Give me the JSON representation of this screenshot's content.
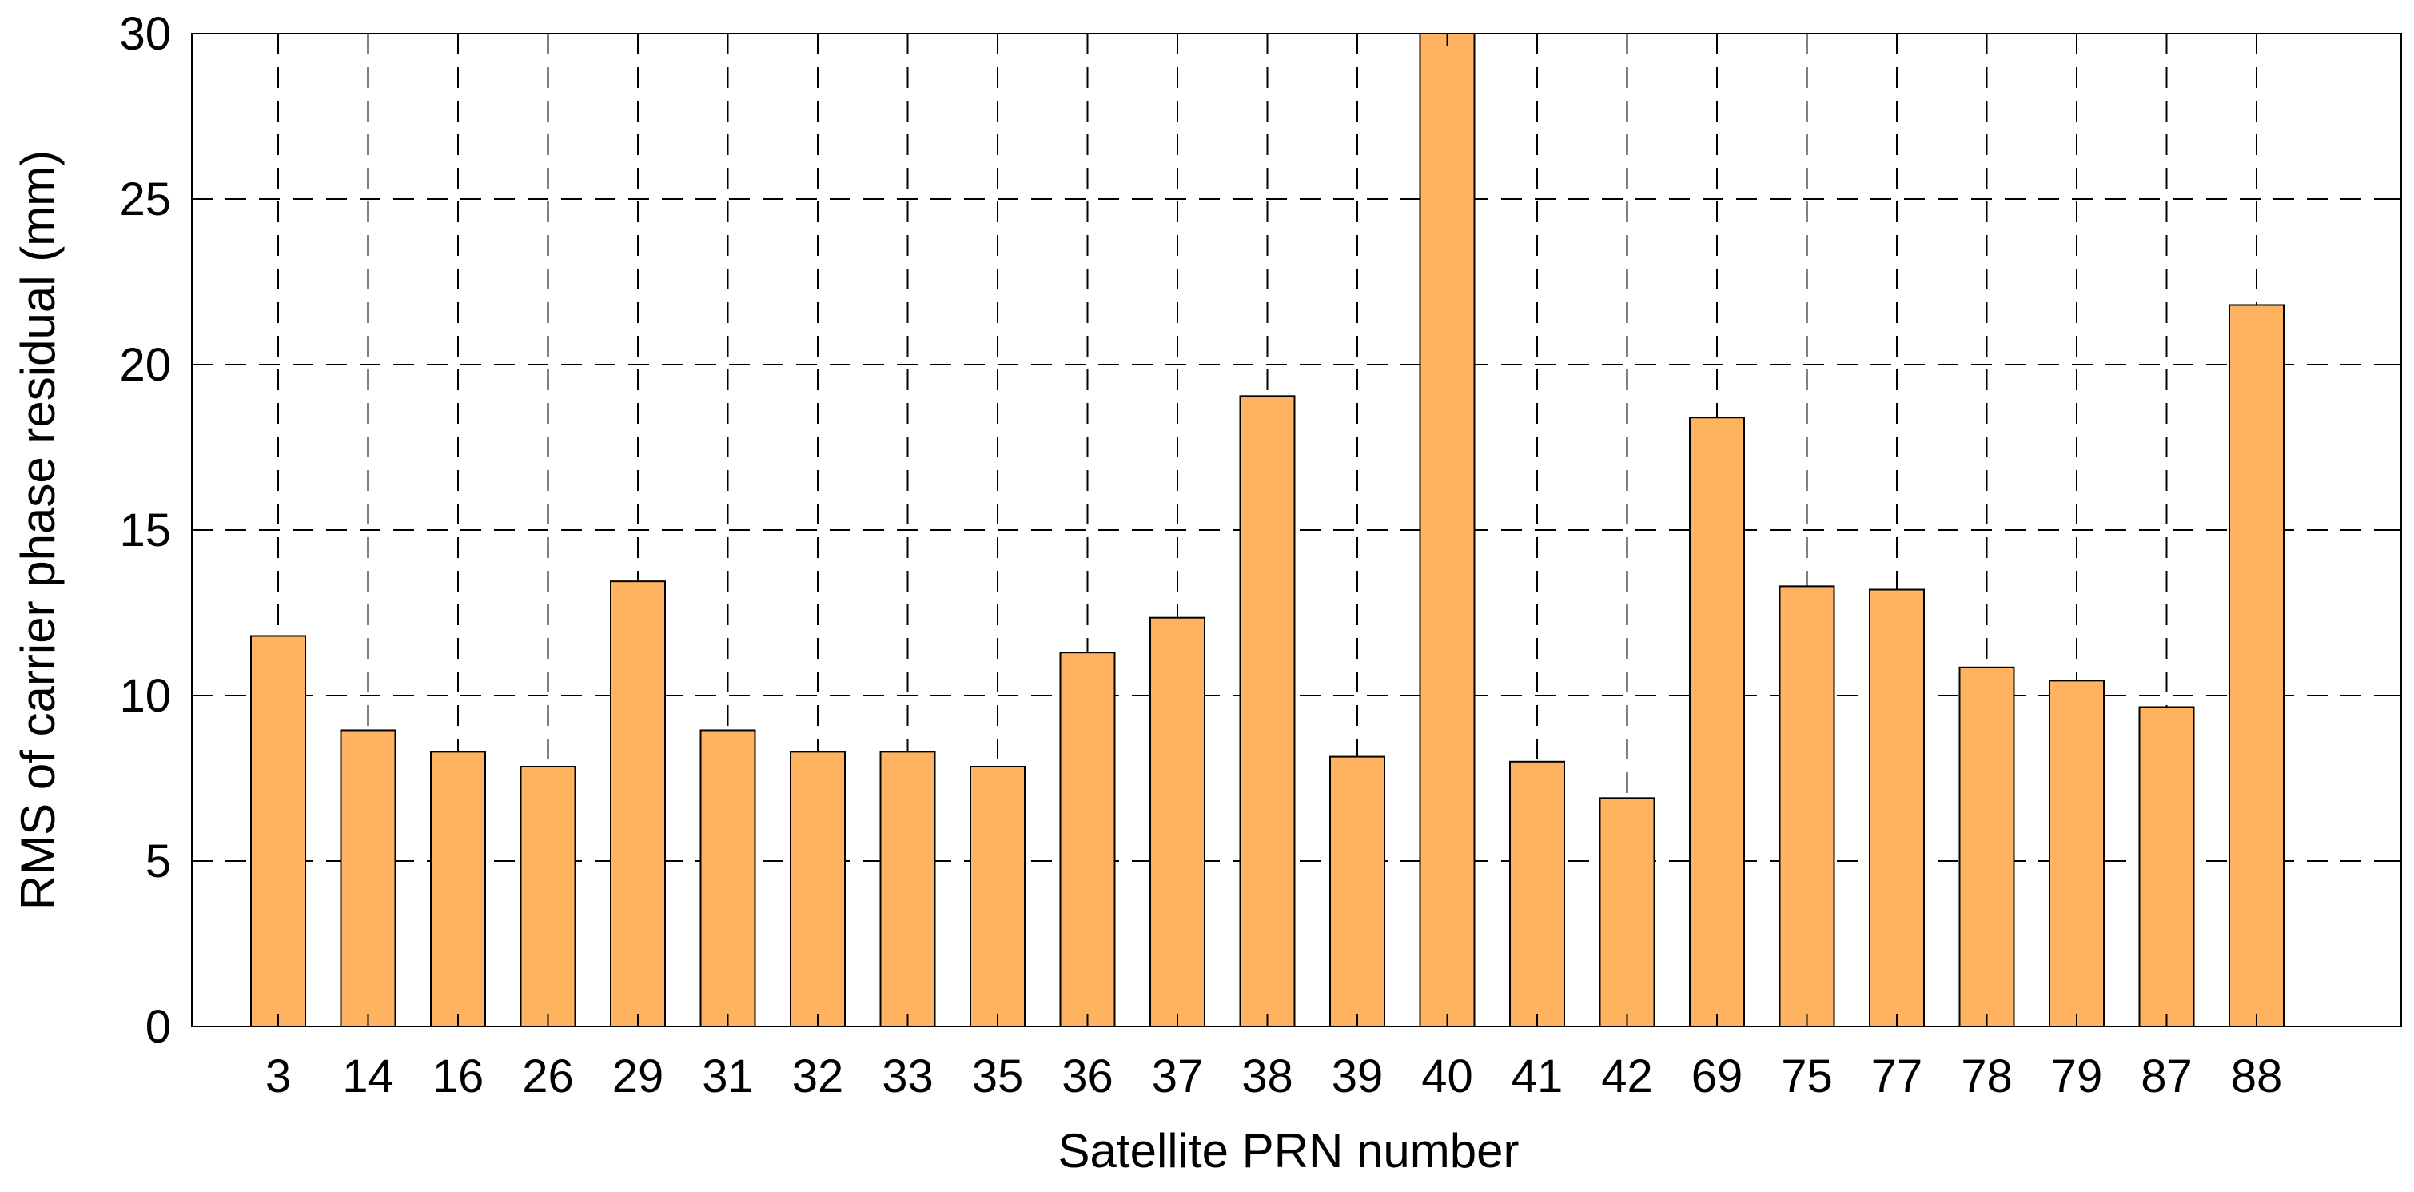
{
  "chart_data": {
    "type": "bar",
    "title": "",
    "xlabel": "Satellite PRN number",
    "ylabel": "RMS of carrier phase residual (mm)",
    "categories": [
      "3",
      "14",
      "16",
      "26",
      "29",
      "31",
      "32",
      "33",
      "35",
      "36",
      "37",
      "38",
      "39",
      "40",
      "41",
      "42",
      "69",
      "75",
      "77",
      "78",
      "79",
      "87",
      "88"
    ],
    "values": [
      11.8,
      8.95,
      8.3,
      7.85,
      13.45,
      8.95,
      8.3,
      8.3,
      7.85,
      11.3,
      12.35,
      19.05,
      8.15,
      30,
      8.0,
      6.9,
      18.4,
      13.3,
      13.2,
      10.85,
      10.45,
      9.65,
      21.8
    ],
    "ylim": [
      0,
      30
    ],
    "yticks": [
      "0",
      "5",
      "10",
      "15",
      "20",
      "25",
      "30"
    ],
    "grid": true,
    "bar_color": "#FFB35F",
    "bar_edge_color": "#000000",
    "grid_color": "#000000"
  }
}
